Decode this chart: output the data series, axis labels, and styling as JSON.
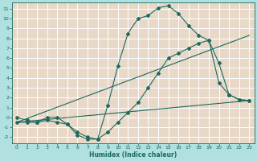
{
  "xlabel": "Humidex (Indice chaleur)",
  "bg_outer": "#b0e0e0",
  "bg_plot": "#e8d8c8",
  "grid_color": "#ffffff",
  "line_color": "#1a6b5e",
  "xlim": [
    -0.5,
    23.5
  ],
  "ylim": [
    -2.6,
    11.6
  ],
  "xticks": [
    0,
    1,
    2,
    3,
    4,
    5,
    6,
    7,
    8,
    9,
    10,
    11,
    12,
    13,
    14,
    15,
    16,
    17,
    18,
    19,
    20,
    21,
    22,
    23
  ],
  "yticks": [
    -2,
    -1,
    0,
    1,
    2,
    3,
    4,
    5,
    6,
    7,
    8,
    9,
    10,
    11
  ],
  "curve1_x": [
    0,
    1,
    2,
    3,
    4,
    5,
    6,
    7,
    8,
    9,
    10,
    11,
    12,
    13,
    14,
    15,
    16,
    17,
    18,
    19,
    20,
    21,
    22,
    23
  ],
  "curve1_y": [
    0,
    -0.3,
    -0.5,
    0,
    0,
    -0.7,
    -1.8,
    -2.2,
    -2.2,
    1.2,
    5.2,
    8.5,
    10,
    10.3,
    11.1,
    11.3,
    10.5,
    9.3,
    8.3,
    7.8,
    3.5,
    2.3,
    1.8,
    1.7
  ],
  "line1_x": [
    0,
    23
  ],
  "line1_y": [
    -0.5,
    8.3
  ],
  "line2_x": [
    0,
    23
  ],
  "line2_y": [
    -0.5,
    1.7
  ],
  "curve2_x": [
    0,
    1,
    2,
    3,
    4,
    5,
    6,
    7,
    8,
    9,
    10,
    11,
    12,
    13,
    14,
    15,
    16,
    17,
    18,
    19,
    20,
    21,
    22,
    23
  ],
  "curve2_y": [
    -0.5,
    -0.5,
    -0.5,
    -0.3,
    -0.5,
    -0.7,
    -1.5,
    -2.0,
    -2.2,
    -1.5,
    -0.5,
    0.5,
    1.5,
    3.0,
    4.5,
    6.0,
    6.5,
    7.0,
    7.5,
    7.8,
    5.5,
    2.3,
    1.8,
    1.7
  ]
}
